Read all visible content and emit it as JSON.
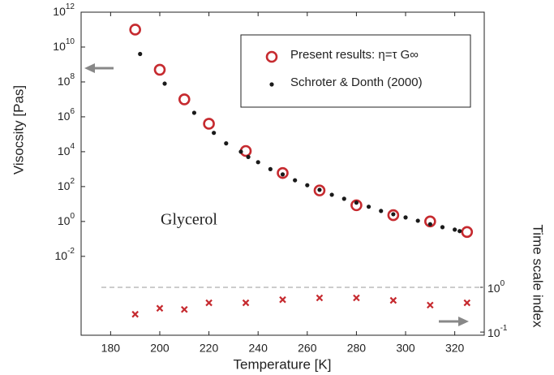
{
  "chart_data": {
    "type": "scatter",
    "x_label": "Temperature [K]",
    "y_label": "Visocsity [Pas]",
    "y2_label": "Time scale index",
    "annotation": "Glycerol",
    "xlim": [
      168,
      332
    ],
    "xticks": [
      180,
      200,
      220,
      240,
      260,
      280,
      300,
      320
    ],
    "ylim": [
      3e-07,
      1000000000000.0
    ],
    "yscale": "log",
    "yticks": [
      {
        "value": 1000000000000.0,
        "label": "10^12"
      },
      {
        "value": 10000000000.0,
        "label": "10^10"
      },
      {
        "value": 100000000.0,
        "label": "10^8"
      },
      {
        "value": 1000000.0,
        "label": "10^6"
      },
      {
        "value": 10000.0,
        "label": "10^4"
      },
      {
        "value": 100,
        "label": "10^2"
      },
      {
        "value": 1,
        "label": "10^0"
      },
      {
        "value": 0.01,
        "label": "10^-2"
      }
    ],
    "y2lim": [
      0.085,
      1400000
    ],
    "y2scale": "log",
    "y2ticks": [
      {
        "value": 1,
        "label": "10^0"
      },
      {
        "value": 0.1,
        "label": "10^-1"
      }
    ],
    "reference_line": {
      "value": 1,
      "axis": "y2",
      "style": "dashed"
    },
    "legend": "upper right",
    "series": [
      {
        "name": "Present results: η=τ G∞",
        "marker": "circle",
        "color": "#c62a2f",
        "x": [
          190,
          200,
          210,
          220,
          235,
          250,
          265,
          280,
          295,
          310,
          325
        ],
        "values": [
          100000000000.0,
          500000000.0,
          10000000.0,
          400000.0,
          11000,
          600,
          60,
          8.5,
          2.3,
          1,
          0.25
        ]
      },
      {
        "name": "Schroter & Donth (2000)",
        "marker": "dot",
        "color": "#1a1a1a",
        "x": [
          192,
          202,
          214,
          222,
          227,
          233,
          236,
          240,
          245,
          250,
          255,
          260,
          265,
          270,
          275,
          280,
          285,
          290,
          295,
          300,
          305,
          310,
          315,
          320,
          322
        ],
        "values": [
          4000000000.0,
          80000000.0,
          1700000.0,
          120000,
          30000,
          10000,
          5000,
          2500,
          1000,
          500,
          230,
          120,
          65,
          34,
          20,
          12,
          7,
          4,
          2.6,
          1.7,
          1.1,
          0.7,
          0.47,
          0.34,
          0.28
        ]
      },
      {
        "marker": "x",
        "color": "#c62a2f",
        "axis": "y2",
        "x": [
          190,
          200,
          210,
          220,
          235,
          250,
          265,
          280,
          295,
          310,
          325
        ],
        "values": [
          0.25,
          0.34,
          0.32,
          0.45,
          0.45,
          0.53,
          0.58,
          0.58,
          0.51,
          0.4,
          0.45
        ]
      }
    ]
  }
}
